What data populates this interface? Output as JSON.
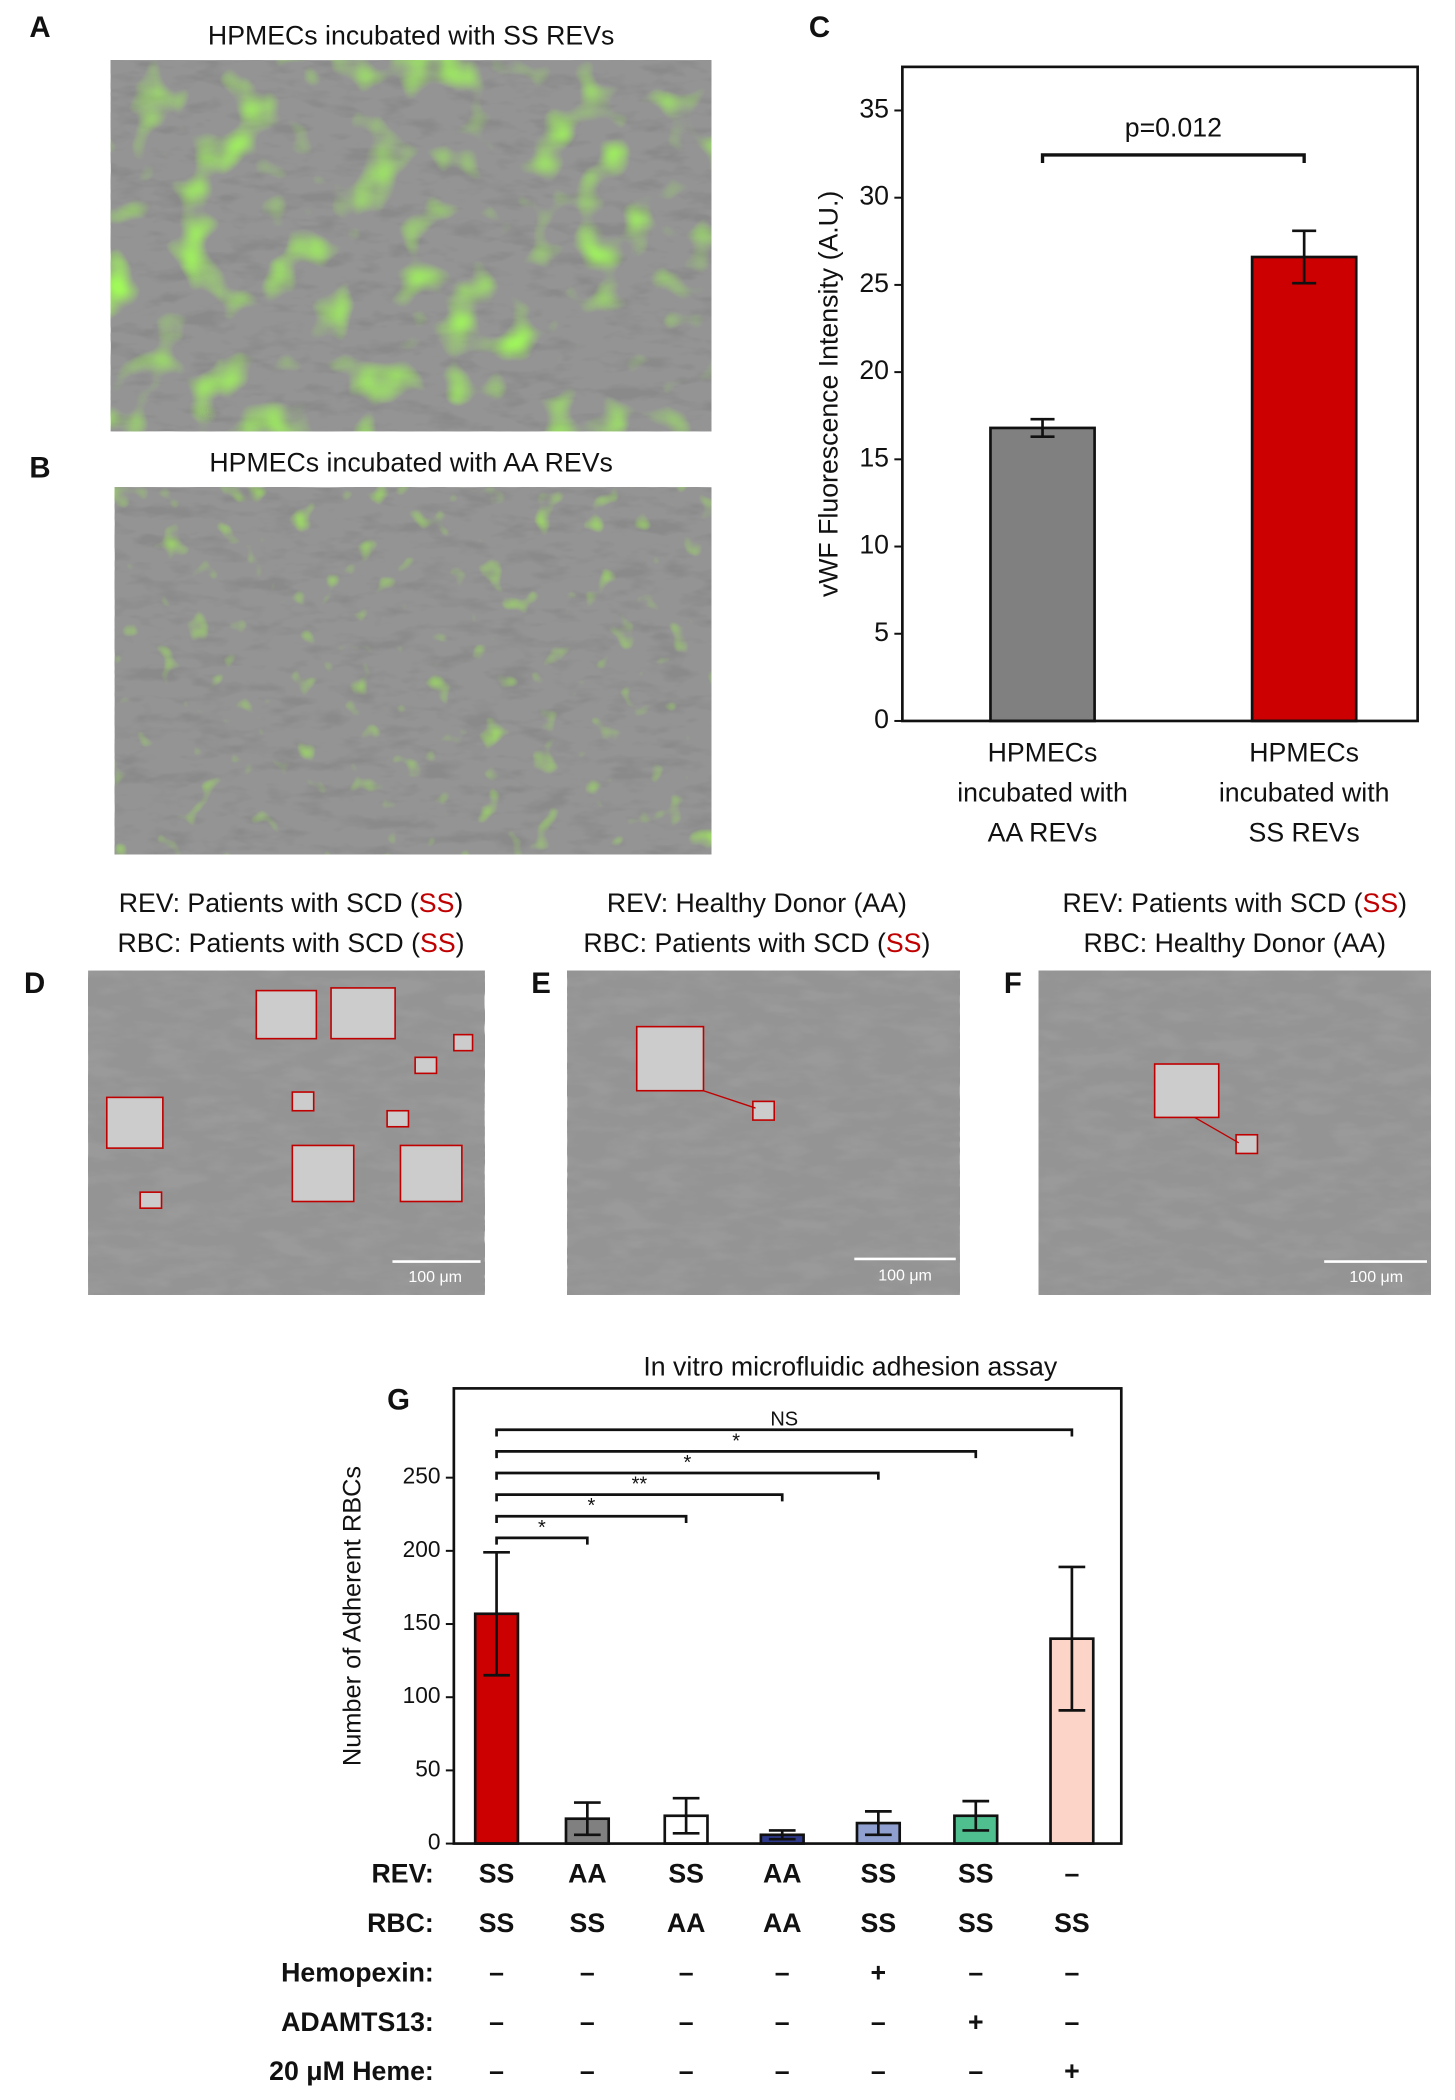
{
  "panels": {
    "labels": [
      "A",
      "B",
      "C",
      "D",
      "E",
      "F",
      "G"
    ],
    "image_titles": [
      "HPMECs incubated with SS REVs",
      "HPMECs incubated with AA REVs"
    ],
    "captions": [
      [
        [
          {
            "text": "REV: Patients with SCD ("
          },
          {
            "text": "SS",
            "color": "#c00000"
          },
          {
            "text": ")"
          }
        ],
        [
          {
            "text": "RBC: Patients with SCD ("
          },
          {
            "text": "SS",
            "color": "#c00000"
          },
          {
            "text": ")"
          }
        ]
      ],
      [
        [
          {
            "text": "REV: Healthy Donor (AA)"
          }
        ],
        [
          {
            "text": "RBC: Patients with SCD ("
          },
          {
            "text": "SS",
            "color": "#c00000"
          },
          {
            "text": ")"
          }
        ]
      ],
      [
        [
          {
            "text": "REV: Patients with SCD ("
          },
          {
            "text": "SS",
            "color": "#c00000"
          },
          {
            "text": ")"
          }
        ],
        [
          {
            "text": "RBC: Healthy Donor (AA)"
          }
        ]
      ]
    ],
    "scale_bars": [
      "100 μm",
      "100 μm",
      "100 μm"
    ]
  },
  "chart_data": [
    {
      "type": "bar",
      "ylabel": "vWF Fluorescence Intensity (A.U.)",
      "categories": [
        "HPMECs\nincubated with\nAA REVs",
        "HPMECs\nincubated with\nSS REVs"
      ],
      "values": [
        16.8,
        26.6
      ],
      "errors": [
        0.5,
        1.5
      ],
      "colors": [
        "#808080",
        "#cc0000"
      ],
      "ylim": [
        0,
        37.5
      ],
      "yticks": [
        0,
        5,
        10,
        15,
        20,
        25,
        30,
        35
      ],
      "annotation": "p=0.012"
    },
    {
      "type": "bar",
      "title": "In vitro microfluidic adhesion assay",
      "ylabel": "Number of Adherent RBCs",
      "values": [
        157,
        17,
        19,
        6,
        14,
        19,
        140
      ],
      "errors": [
        42,
        11,
        12,
        3,
        8,
        10,
        49
      ],
      "colors": [
        "#cc0000",
        "#808080",
        "#ffffff",
        "#2e3a8c",
        "#8fa0d0",
        "#4fbf8f",
        "#fcd5c8"
      ],
      "ylim": [
        0,
        311
      ],
      "yticks": [
        0,
        50,
        100,
        150,
        200,
        250
      ],
      "significance": [
        "*",
        "*",
        "**",
        "*",
        "*",
        "NS"
      ],
      "highlight_text": "SS",
      "highlight_color": "#c00000",
      "conditions": [
        {
          "label": "REV:",
          "cells": [
            "SS",
            "AA",
            "SS",
            "AA",
            "SS",
            "SS",
            "–"
          ]
        },
        {
          "label": "RBC:",
          "cells": [
            "SS",
            "SS",
            "AA",
            "AA",
            "SS",
            "SS",
            "SS"
          ]
        },
        {
          "label": "Hemopexin:",
          "cells": [
            "–",
            "–",
            "–",
            "–",
            "+",
            "–",
            "–"
          ]
        },
        {
          "label": "ADAMTS13:",
          "cells": [
            "–",
            "–",
            "–",
            "–",
            "–",
            "+",
            "–"
          ]
        },
        {
          "label": "20 μM Heme:",
          "cells": [
            "–",
            "–",
            "–",
            "–",
            "–",
            "–",
            "+"
          ]
        }
      ]
    }
  ]
}
